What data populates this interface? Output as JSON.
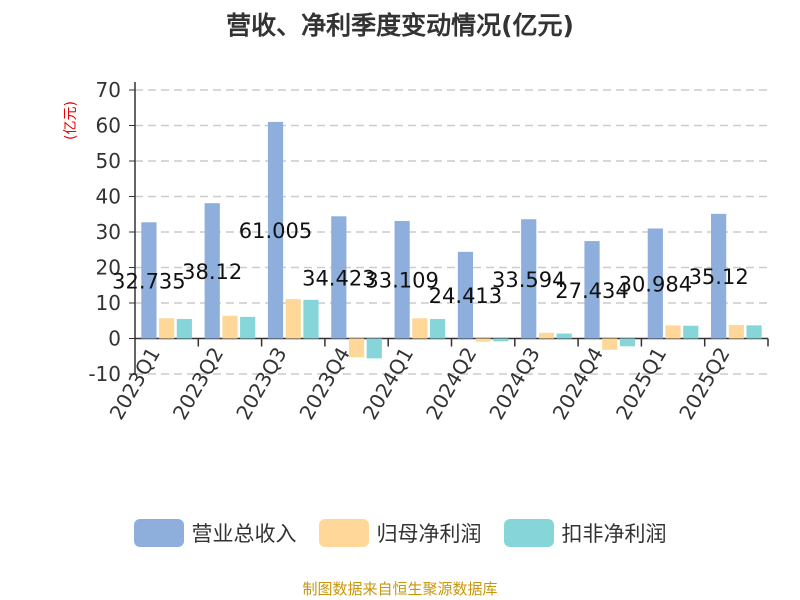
{
  "chart_data": {
    "type": "bar",
    "title": "营收、净利季度变动情况(亿元)",
    "ylabel": "(亿元)",
    "ylim": [
      -10,
      70
    ],
    "yticks": [
      -10,
      0,
      10,
      20,
      30,
      40,
      50,
      60,
      70
    ],
    "grid": true,
    "legend_placement": "bottom",
    "categories": [
      "2023Q1",
      "2023Q2",
      "2023Q3",
      "2023Q4",
      "2024Q1",
      "2024Q2",
      "2024Q3",
      "2024Q4",
      "2025Q1",
      "2025Q2"
    ],
    "series": [
      {
        "name": "营业总收入",
        "color": "#8eaedc",
        "values": [
          32.735,
          38.12,
          61.005,
          34.423,
          33.109,
          24.413,
          33.594,
          27.434,
          30.984,
          35.12
        ],
        "labels": [
          "32.735",
          "38.12",
          "61.005",
          "34.423",
          "33.109",
          "24.413",
          "33.594",
          "27.434",
          "30.984",
          "35.12"
        ]
      },
      {
        "name": "归母净利润",
        "color": "#ffd899",
        "values": [
          5.7,
          6.4,
          11.1,
          -5.3,
          5.7,
          -0.9,
          1.6,
          -3.2,
          3.7,
          3.8
        ]
      },
      {
        "name": "扣非净利润",
        "color": "#86d6d9",
        "values": [
          5.5,
          6.1,
          10.9,
          -5.6,
          5.5,
          -0.8,
          1.4,
          -2.2,
          3.6,
          3.7
        ]
      }
    ]
  },
  "source": "制图数据来自恒生聚源数据库"
}
